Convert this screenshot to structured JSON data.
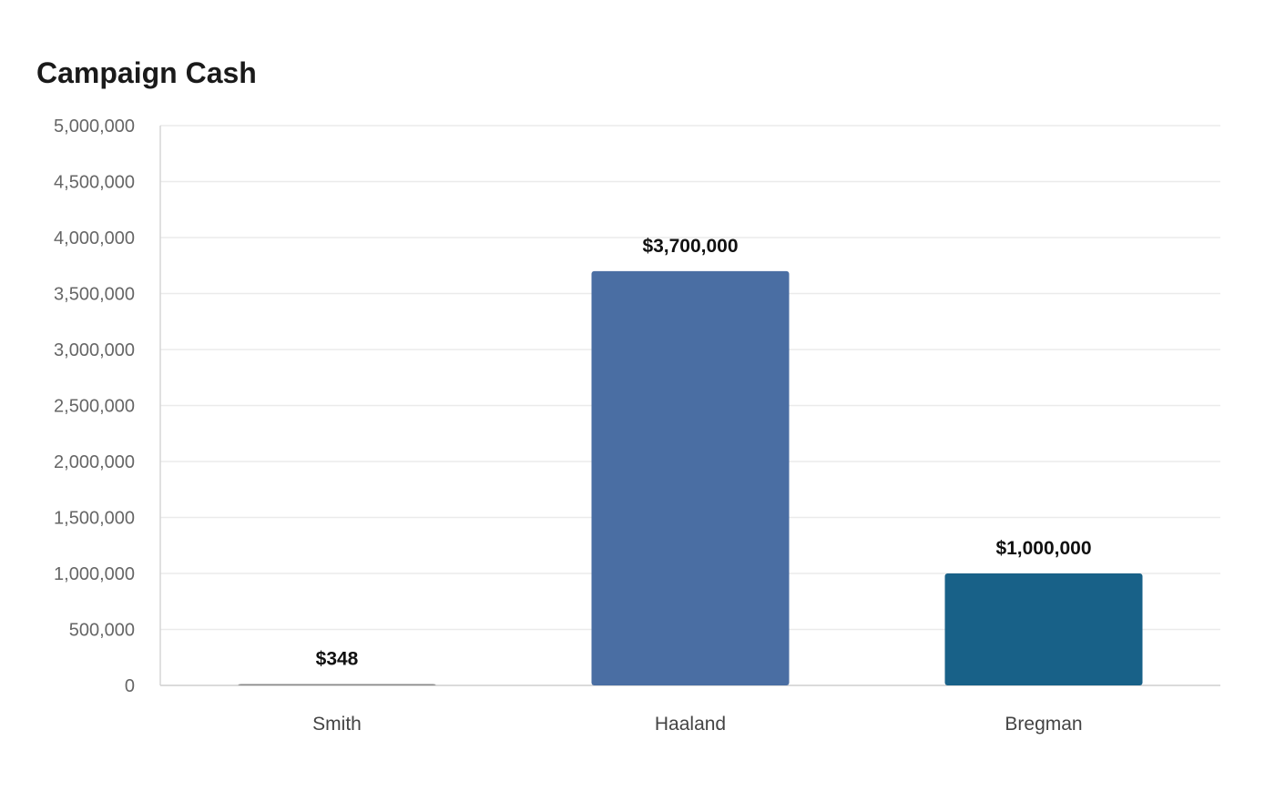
{
  "chart_data": {
    "type": "bar",
    "title": "Campaign Cash",
    "categories": [
      "Smith",
      "Haaland",
      "Bregman"
    ],
    "values": [
      348,
      3700000,
      1000000
    ],
    "data_labels": [
      "$348",
      "$3,700,000",
      "$1,000,000"
    ],
    "colors": [
      "#8a8a8a",
      "#4a6ea3",
      "#186188"
    ],
    "ylim": [
      0,
      5000000
    ],
    "yticks": [
      0,
      500000,
      1000000,
      1500000,
      2000000,
      2500000,
      3000000,
      3500000,
      4000000,
      4500000,
      5000000
    ],
    "ytick_labels": [
      "0",
      "500,000",
      "1,000,000",
      "1,500,000",
      "2,000,000",
      "2,500,000",
      "3,000,000",
      "3,500,000",
      "4,000,000",
      "4,500,000",
      "5,000,000"
    ],
    "grid": true,
    "legend": "none"
  }
}
